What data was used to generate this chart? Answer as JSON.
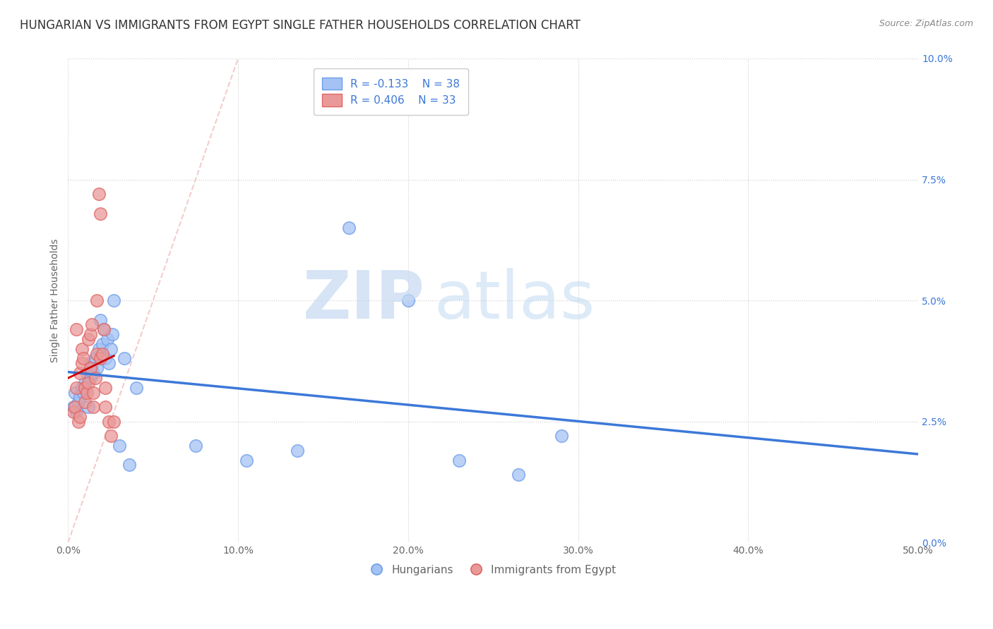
{
  "title": "HUNGARIAN VS IMMIGRANTS FROM EGYPT SINGLE FATHER HOUSEHOLDS CORRELATION CHART",
  "source": "Source: ZipAtlas.com",
  "ylabel": "Single Father Households",
  "xlabel": "",
  "watermark_zip": "ZIP",
  "watermark_atlas": "atlas",
  "legend_r1": "R = -0.133",
  "legend_n1": "N = 38",
  "legend_r2": "R = 0.406",
  "legend_n2": "N = 33",
  "xlim": [
    0.0,
    0.5
  ],
  "ylim": [
    0.0,
    0.1
  ],
  "xticks": [
    0.0,
    0.1,
    0.2,
    0.3,
    0.4,
    0.5
  ],
  "yticks": [
    0.0,
    0.025,
    0.05,
    0.075,
    0.1
  ],
  "ytick_labels": [
    "0.0%",
    "2.5%",
    "5.0%",
    "7.5%",
    "10.0%"
  ],
  "xtick_labels": [
    "0.0%",
    "10.0%",
    "20.0%",
    "30.0%",
    "40.0%",
    "50.0%"
  ],
  "blue_color": "#a4c2f4",
  "pink_color": "#ea9999",
  "blue_edge_color": "#6d9eeb",
  "pink_edge_color": "#e06666",
  "blue_line_color": "#3c78d8",
  "pink_line_color": "#cc0000",
  "diagonal_color": "#f4cccc",
  "grid_color": "#cccccc",
  "background_color": "#ffffff",
  "blue_scatter": [
    [
      0.003,
      0.028
    ],
    [
      0.004,
      0.031
    ],
    [
      0.005,
      0.027
    ],
    [
      0.006,
      0.029
    ],
    [
      0.007,
      0.03
    ],
    [
      0.008,
      0.032
    ],
    [
      0.009,
      0.031
    ],
    [
      0.01,
      0.033
    ],
    [
      0.011,
      0.035
    ],
    [
      0.012,
      0.028
    ],
    [
      0.013,
      0.037
    ],
    [
      0.013,
      0.034
    ],
    [
      0.014,
      0.036
    ],
    [
      0.015,
      0.035
    ],
    [
      0.016,
      0.038
    ],
    [
      0.017,
      0.036
    ],
    [
      0.018,
      0.04
    ],
    [
      0.019,
      0.046
    ],
    [
      0.02,
      0.041
    ],
    [
      0.021,
      0.044
    ],
    [
      0.022,
      0.038
    ],
    [
      0.023,
      0.042
    ],
    [
      0.024,
      0.037
    ],
    [
      0.025,
      0.04
    ],
    [
      0.026,
      0.043
    ],
    [
      0.027,
      0.05
    ],
    [
      0.03,
      0.02
    ],
    [
      0.033,
      0.038
    ],
    [
      0.036,
      0.016
    ],
    [
      0.04,
      0.032
    ],
    [
      0.075,
      0.02
    ],
    [
      0.105,
      0.017
    ],
    [
      0.135,
      0.019
    ],
    [
      0.165,
      0.065
    ],
    [
      0.2,
      0.05
    ],
    [
      0.23,
      0.017
    ],
    [
      0.265,
      0.014
    ],
    [
      0.29,
      0.022
    ]
  ],
  "pink_scatter": [
    [
      0.003,
      0.027
    ],
    [
      0.004,
      0.028
    ],
    [
      0.005,
      0.044
    ],
    [
      0.005,
      0.032
    ],
    [
      0.006,
      0.025
    ],
    [
      0.007,
      0.026
    ],
    [
      0.007,
      0.035
    ],
    [
      0.008,
      0.037
    ],
    [
      0.008,
      0.04
    ],
    [
      0.009,
      0.038
    ],
    [
      0.01,
      0.032
    ],
    [
      0.01,
      0.029
    ],
    [
      0.011,
      0.031
    ],
    [
      0.012,
      0.033
    ],
    [
      0.012,
      0.042
    ],
    [
      0.013,
      0.043
    ],
    [
      0.013,
      0.036
    ],
    [
      0.014,
      0.045
    ],
    [
      0.015,
      0.031
    ],
    [
      0.015,
      0.028
    ],
    [
      0.016,
      0.034
    ],
    [
      0.017,
      0.05
    ],
    [
      0.017,
      0.039
    ],
    [
      0.018,
      0.072
    ],
    [
      0.019,
      0.068
    ],
    [
      0.019,
      0.038
    ],
    [
      0.02,
      0.039
    ],
    [
      0.021,
      0.044
    ],
    [
      0.022,
      0.032
    ],
    [
      0.022,
      0.028
    ],
    [
      0.024,
      0.025
    ],
    [
      0.025,
      0.022
    ],
    [
      0.027,
      0.025
    ]
  ],
  "title_fontsize": 12,
  "axis_label_fontsize": 10,
  "tick_fontsize": 10,
  "legend_fontsize": 11
}
